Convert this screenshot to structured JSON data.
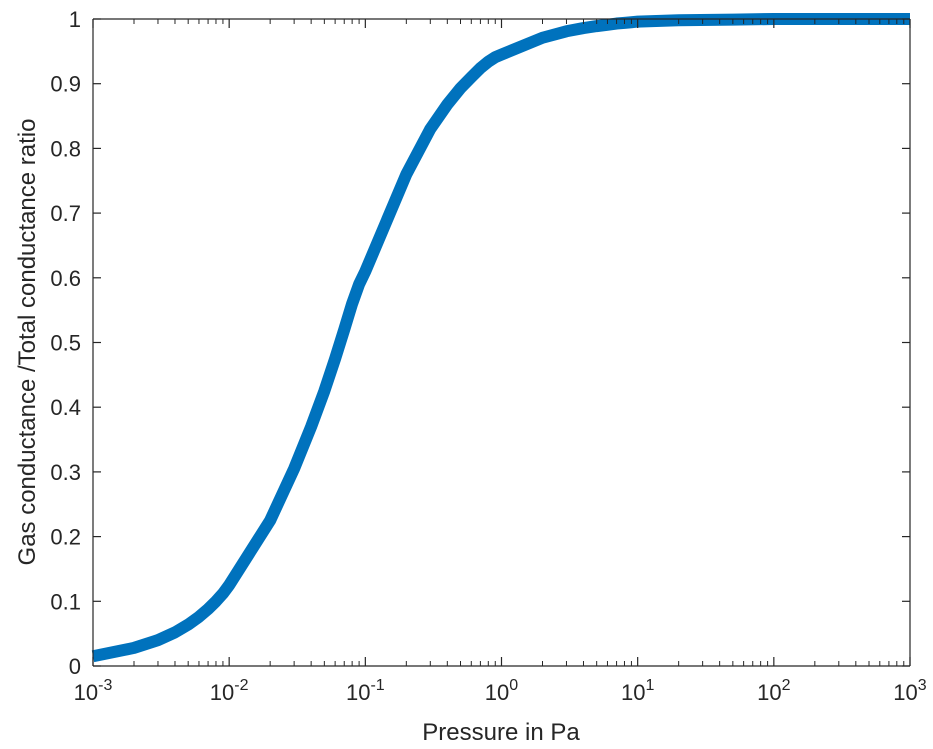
{
  "chart_data": {
    "type": "line",
    "title": "",
    "xlabel": "Pressure in Pa",
    "ylabel": "Gas conductance /Total conductance ratio",
    "x_scale": "log",
    "xlim": [
      0.001,
      1000
    ],
    "ylim": [
      0,
      1
    ],
    "grid": false,
    "legend": "none",
    "x_ticks": [
      {
        "base": "10",
        "exp": "-3",
        "value": 0.001
      },
      {
        "base": "10",
        "exp": "-2",
        "value": 0.01
      },
      {
        "base": "10",
        "exp": "-1",
        "value": 0.1
      },
      {
        "base": "10",
        "exp": "0",
        "value": 1
      },
      {
        "base": "10",
        "exp": "1",
        "value": 10
      },
      {
        "base": "10",
        "exp": "2",
        "value": 100
      },
      {
        "base": "10",
        "exp": "3",
        "value": 1000
      }
    ],
    "y_ticks": [
      {
        "label": "0",
        "value": 0
      },
      {
        "label": "0.1",
        "value": 0.1
      },
      {
        "label": "0.2",
        "value": 0.2
      },
      {
        "label": "0.3",
        "value": 0.3
      },
      {
        "label": "0.4",
        "value": 0.4
      },
      {
        "label": "0.5",
        "value": 0.5
      },
      {
        "label": "0.6",
        "value": 0.6
      },
      {
        "label": "0.7",
        "value": 0.7
      },
      {
        "label": "0.8",
        "value": 0.8
      },
      {
        "label": "0.9",
        "value": 0.9
      },
      {
        "label": "1",
        "value": 1
      }
    ],
    "series": [
      {
        "color": "#0072BD",
        "x": [
          0.001,
          0.002,
          0.003,
          0.004,
          0.005,
          0.006,
          0.007,
          0.008,
          0.009,
          0.01,
          0.02,
          0.03,
          0.04,
          0.05,
          0.06,
          0.07,
          0.08,
          0.09,
          0.1,
          0.2,
          0.3,
          0.4,
          0.5,
          0.6,
          0.7,
          0.8,
          0.9,
          1,
          2,
          3,
          4,
          5,
          6,
          7,
          8,
          9,
          10,
          20,
          50,
          100,
          1000
        ],
        "y": [
          0.015,
          0.028,
          0.04,
          0.052,
          0.064,
          0.076,
          0.088,
          0.1,
          0.112,
          0.125,
          0.225,
          0.305,
          0.37,
          0.425,
          0.475,
          0.52,
          0.56,
          0.59,
          0.61,
          0.76,
          0.83,
          0.868,
          0.893,
          0.91,
          0.924,
          0.934,
          0.941,
          0.945,
          0.971,
          0.981,
          0.986,
          0.989,
          0.991,
          0.993,
          0.994,
          0.995,
          0.996,
          0.998,
          0.999,
          1.0,
          1.0
        ]
      }
    ]
  }
}
